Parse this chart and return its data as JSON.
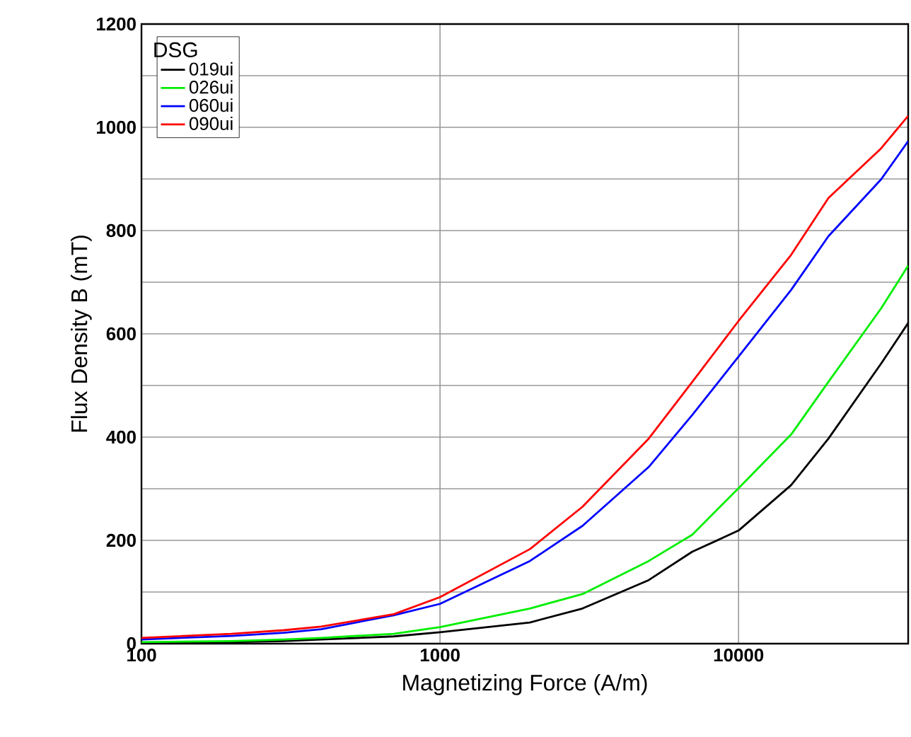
{
  "chart_data": {
    "type": "line",
    "xlabel": "Magnetizing Force (A/m)",
    "ylabel": "Flux Density B (mT)",
    "legend_title": "DSG",
    "log": "x",
    "grid": true,
    "legend": "top left",
    "xlim": [
      100,
      37000
    ],
    "xticks": [
      100,
      1000,
      10000
    ],
    "ylim": [
      0,
      1200
    ],
    "yticks": [
      0,
      {
        "value": 100,
        "label": null
      },
      200,
      {
        "value": 300,
        "label": null
      },
      400,
      {
        "value": 500,
        "label": null
      },
      600,
      {
        "value": 700,
        "label": null
      },
      800,
      {
        "value": 900,
        "label": null
      },
      1000,
      {
        "value": 1100,
        "label": null
      },
      1200
    ],
    "x": [
      100,
      200,
      300,
      400,
      700,
      1000,
      2000,
      3000,
      5000,
      7000,
      10000,
      15000,
      20000,
      30000,
      37000
    ],
    "series": [
      {
        "name": "019ui",
        "color": "#000000",
        "values": [
          1,
          3,
          5,
          8,
          14,
          22,
          41,
          68,
          123,
          178,
          219,
          307,
          397,
          542,
          621
        ]
      },
      {
        "name": "026ui",
        "color": "#00ee00",
        "values": [
          3,
          5,
          8,
          11,
          19,
          32,
          68,
          96,
          160,
          211,
          301,
          405,
          507,
          649,
          732
        ]
      },
      {
        "name": "060ui",
        "color": "#0000ff",
        "values": [
          8,
          15,
          21,
          28,
          55,
          77,
          160,
          228,
          342,
          443,
          556,
          685,
          789,
          899,
          973
        ]
      },
      {
        "name": "090ui",
        "color": "#ff0000",
        "values": [
          11,
          19,
          26,
          33,
          57,
          90,
          183,
          265,
          397,
          507,
          625,
          753,
          863,
          959,
          1022
        ]
      }
    ]
  }
}
